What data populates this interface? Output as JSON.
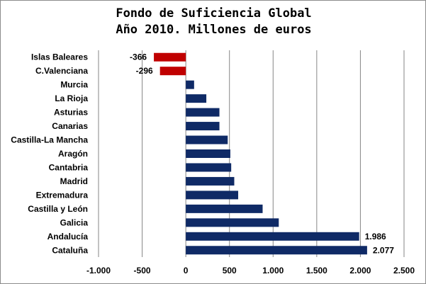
{
  "chart_data": {
    "type": "bar",
    "orientation": "horizontal",
    "title": [
      "Fondo de Suficiencia Global",
      "Año 2010. Millones de euros"
    ],
    "categories": [
      "Islas Baleares",
      "C.Valenciana",
      "Murcia",
      "La Rioja",
      "Asturias",
      "Canarias",
      "Castilla-La Mancha",
      "Aragón",
      "Cantabria",
      "Madrid",
      "Extremadura",
      "Castilla y León",
      "Galicia",
      "Andalucía",
      "Cataluña"
    ],
    "values": [
      -366,
      -296,
      95,
      235,
      385,
      385,
      480,
      510,
      520,
      555,
      600,
      880,
      1065,
      1986,
      2077
    ],
    "data_labels": [
      "-366",
      "-296",
      "",
      "",
      "",
      "",
      "",
      "",
      "",
      "",
      "",
      "",
      "",
      "1.986",
      "2.077"
    ],
    "xlim": [
      -1000,
      2500
    ],
    "xticks": [
      -1000,
      -500,
      0,
      500,
      1000,
      1500,
      2000,
      2500
    ],
    "xtick_labels": [
      "-1.000",
      "-500",
      "0",
      "500",
      "1.000",
      "1.500",
      "2.000",
      "2.500"
    ],
    "grid": "vertical",
    "legend": "none",
    "colors": {
      "positive": "#0f2a66",
      "negative": "#c00000",
      "grid": "#868686"
    }
  }
}
